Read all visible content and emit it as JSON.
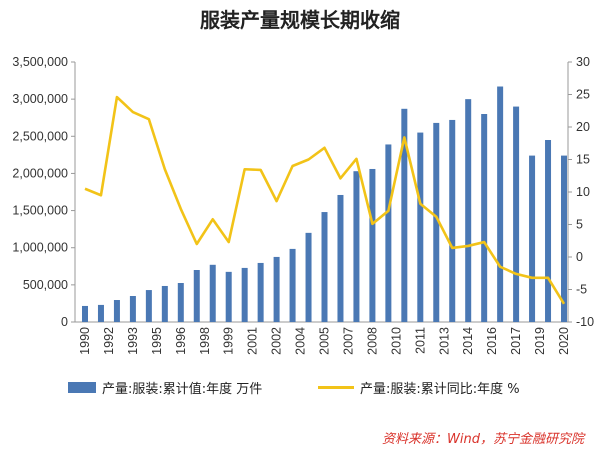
{
  "chart_data": {
    "type": "bar+line",
    "title": "服装产量规模长期收缩",
    "categories": [
      1990,
      1991,
      1992,
      1993,
      1994,
      1995,
      1996,
      1997,
      1998,
      1999,
      2000,
      2001,
      2002,
      2003,
      2004,
      2005,
      2006,
      2007,
      2008,
      2009,
      2010,
      2011,
      2012,
      2013,
      2014,
      2015,
      2016,
      2017,
      2018,
      2019,
      2020
    ],
    "x_tick_labels": [
      "1990",
      "1992",
      "1993",
      "1995",
      "1996",
      "1998",
      "1999",
      "2001",
      "2002",
      "2004",
      "2005",
      "2007",
      "2008",
      "2010",
      "2011",
      "2013",
      "2014",
      "2016",
      "2017",
      "2019",
      "2020"
    ],
    "series": [
      {
        "name": "产量:服装:累计值:年度 万件",
        "type": "bar",
        "axis": "left",
        "color": "#4a78b4",
        "values": [
          216000,
          230000,
          296000,
          350000,
          430000,
          485000,
          525000,
          700000,
          770000,
          675000,
          728000,
          795000,
          876000,
          984000,
          1200000,
          1480000,
          1710000,
          2030000,
          2060000,
          2390000,
          2870000,
          2550000,
          2680000,
          2720000,
          3000000,
          2800000,
          3170000,
          2900000,
          2240000,
          2450000,
          2240000
        ]
      },
      {
        "name": "产量:服装:累计同比:年度 %",
        "type": "line",
        "axis": "right",
        "color": "#f2c318",
        "values": [
          10.5,
          9.5,
          24.6,
          22.3,
          21.2,
          13.5,
          7.4,
          2.0,
          5.8,
          2.3,
          13.5,
          13.4,
          8.6,
          14.0,
          15.0,
          16.8,
          12.1,
          15.1,
          5.1,
          7.1,
          18.4,
          8.2,
          6.2,
          1.4,
          1.7,
          2.3,
          -1.5,
          -2.6,
          -3.2,
          -3.2,
          -7.2
        ]
      }
    ],
    "y_left": {
      "range": [
        0,
        3500000
      ],
      "ticks": [
        "0",
        "500,000",
        "1,000,000",
        "1,500,000",
        "2,000,000",
        "2,500,000",
        "3,000,000",
        "3,500,000"
      ]
    },
    "y_right": {
      "range": [
        -10,
        30
      ],
      "ticks": [
        "-10",
        "-5",
        "0",
        "5",
        "10",
        "15",
        "20",
        "25",
        "30"
      ]
    },
    "grid": false,
    "legend_position": "bottom"
  },
  "source": "资料来源：Wind，苏宁金融研究院"
}
